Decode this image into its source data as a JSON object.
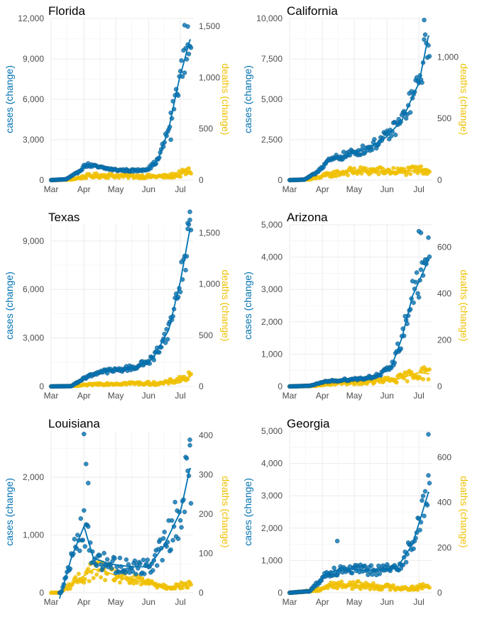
{
  "colors": {
    "cases": "#0072B2",
    "deaths": "#F0C000"
  },
  "chart_data": [
    {
      "type": "scatter",
      "title": "Florida",
      "ylabel": "cases (change)",
      "y2label": "deaths (change)",
      "xticks": [
        "Mar",
        "Apr",
        "May",
        "Jun",
        "Jul"
      ],
      "xlim": [
        "2020-03-01",
        "2020-07-13"
      ],
      "ylim": [
        0,
        12000
      ],
      "yticks": [
        0,
        3000,
        6000,
        9000,
        12000
      ],
      "yticklabels": [
        "0",
        "3,000",
        "6,000",
        "9,000",
        "12,000"
      ],
      "y2lim": [
        0,
        1576
      ],
      "y2ticks": [
        0,
        500,
        1000,
        1500
      ],
      "y2ticklabels": [
        "0",
        "500",
        "1,000",
        "1,500"
      ],
      "cases_trend": [
        [
          "2020-03-01",
          0
        ],
        [
          "2020-03-15",
          60
        ],
        [
          "2020-03-25",
          500
        ],
        [
          "2020-04-03",
          1150
        ],
        [
          "2020-04-15",
          950
        ],
        [
          "2020-05-01",
          750
        ],
        [
          "2020-05-20",
          700
        ],
        [
          "2020-06-01",
          850
        ],
        [
          "2020-06-10",
          1500
        ],
        [
          "2020-06-20",
          3800
        ],
        [
          "2020-06-30",
          7500
        ],
        [
          "2020-07-10",
          10400
        ]
      ],
      "cases_noise": 0.12,
      "cases_outliers": [
        [
          "2020-07-05",
          11500
        ],
        [
          "2020-07-08",
          11400
        ],
        [
          "2020-06-22",
          3000
        ]
      ],
      "deaths_trend": [
        [
          "2020-03-01",
          0
        ],
        [
          "2020-03-20",
          5
        ],
        [
          "2020-04-05",
          40
        ],
        [
          "2020-04-20",
          45
        ],
        [
          "2020-05-10",
          40
        ],
        [
          "2020-06-01",
          35
        ],
        [
          "2020-06-20",
          35
        ],
        [
          "2020-07-10",
          85
        ]
      ],
      "deaths_noise": 0.5
    },
    {
      "type": "scatter",
      "title": "California",
      "ylabel": "cases (change)",
      "y2label": "deaths (change)",
      "xticks": [
        "Mar",
        "Apr",
        "May",
        "Jun",
        "Jul"
      ],
      "xlim": [
        "2020-03-01",
        "2020-07-13"
      ],
      "ylim": [
        0,
        10000
      ],
      "yticks": [
        0,
        2500,
        5000,
        7500,
        10000
      ],
      "yticklabels": [
        "0",
        "2,500",
        "5,000",
        "7,500",
        "10,000"
      ],
      "y2lim": [
        0,
        1313
      ],
      "y2ticks": [
        0,
        500,
        1000
      ],
      "y2ticklabels": [
        "0",
        "500",
        "1,000"
      ],
      "cases_trend": [
        [
          "2020-03-01",
          0
        ],
        [
          "2020-03-15",
          30
        ],
        [
          "2020-03-25",
          400
        ],
        [
          "2020-04-05",
          1100
        ],
        [
          "2020-04-15",
          1400
        ],
        [
          "2020-05-01",
          1700
        ],
        [
          "2020-05-15",
          2000
        ],
        [
          "2020-06-01",
          2700
        ],
        [
          "2020-06-15",
          3700
        ],
        [
          "2020-07-01",
          6000
        ],
        [
          "2020-07-10",
          8900
        ]
      ],
      "cases_noise": 0.15,
      "cases_outliers": [
        [
          "2020-07-06",
          9900
        ]
      ],
      "deaths_trend": [
        [
          "2020-03-01",
          0
        ],
        [
          "2020-03-20",
          5
        ],
        [
          "2020-04-05",
          40
        ],
        [
          "2020-04-25",
          70
        ],
        [
          "2020-05-15",
          75
        ],
        [
          "2020-06-15",
          70
        ],
        [
          "2020-07-10",
          85
        ]
      ],
      "deaths_noise": 0.45
    },
    {
      "type": "scatter",
      "title": "Texas",
      "ylabel": "cases (change)",
      "y2label": "deaths (change)",
      "xticks": [
        "Mar",
        "Apr",
        "May",
        "Jun",
        "Jul"
      ],
      "xlim": [
        "2020-03-01",
        "2020-07-13"
      ],
      "ylim": [
        0,
        10000
      ],
      "yticks": [
        0,
        3000,
        6000,
        9000
      ],
      "yticklabels": [
        "0",
        "3,000",
        "6,000",
        "9,000"
      ],
      "y2lim": [
        0,
        1578
      ],
      "y2ticks": [
        0,
        500,
        1000,
        1500
      ],
      "y2ticklabels": [
        "0",
        "500",
        "1,000",
        "1,500"
      ],
      "cases_trend": [
        [
          "2020-03-01",
          0
        ],
        [
          "2020-03-20",
          20
        ],
        [
          "2020-04-01",
          500
        ],
        [
          "2020-04-15",
          900
        ],
        [
          "2020-05-01",
          1000
        ],
        [
          "2020-05-20",
          1200
        ],
        [
          "2020-06-05",
          1700
        ],
        [
          "2020-06-20",
          3500
        ],
        [
          "2020-07-01",
          6500
        ],
        [
          "2020-07-10",
          9700
        ]
      ],
      "cases_noise": 0.14,
      "cases_outliers": [
        [
          "2020-07-10",
          10800
        ],
        [
          "2020-07-08",
          10100
        ]
      ],
      "deaths_trend": [
        [
          "2020-03-01",
          0
        ],
        [
          "2020-03-25",
          5
        ],
        [
          "2020-04-15",
          25
        ],
        [
          "2020-05-15",
          30
        ],
        [
          "2020-06-15",
          30
        ],
        [
          "2020-07-10",
          95
        ]
      ],
      "deaths_noise": 0.5
    },
    {
      "type": "scatter",
      "title": "Arizona",
      "ylabel": "cases (change)",
      "y2label": "deaths (change)",
      "xticks": [
        "Mar",
        "Apr",
        "May",
        "Jun",
        "Jul"
      ],
      "xlim": [
        "2020-03-01",
        "2020-07-13"
      ],
      "ylim": [
        0,
        5000
      ],
      "yticks": [
        0,
        1000,
        2000,
        3000,
        4000,
        5000
      ],
      "yticklabels": [
        "0",
        "1,000",
        "2,000",
        "3,000",
        "4,000",
        "5,000"
      ],
      "y2lim": [
        0,
        696
      ],
      "y2ticks": [
        0,
        200,
        400,
        600
      ],
      "y2ticklabels": [
        "0",
        "200",
        "400",
        "600"
      ],
      "cases_trend": [
        [
          "2020-03-01",
          0
        ],
        [
          "2020-03-20",
          20
        ],
        [
          "2020-04-05",
          150
        ],
        [
          "2020-04-20",
          200
        ],
        [
          "2020-05-10",
          250
        ],
        [
          "2020-05-25",
          350
        ],
        [
          "2020-06-05",
          600
        ],
        [
          "2020-06-15",
          1500
        ],
        [
          "2020-06-25",
          2800
        ],
        [
          "2020-07-10",
          3900
        ]
      ],
      "cases_noise": 0.18,
      "cases_outliers": [
        [
          "2020-07-01",
          4800
        ],
        [
          "2020-07-03",
          4750
        ]
      ],
      "deaths_trend": [
        [
          "2020-03-01",
          0
        ],
        [
          "2020-03-25",
          2
        ],
        [
          "2020-04-15",
          15
        ],
        [
          "2020-05-15",
          20
        ],
        [
          "2020-06-10",
          30
        ],
        [
          "2020-07-01",
          60
        ],
        [
          "2020-07-10",
          55
        ]
      ],
      "deaths_noise": 0.5
    },
    {
      "type": "scatter",
      "title": "Louisiana",
      "ylabel": "cases (change)",
      "y2label": "deaths (change)",
      "xticks": [
        "Mar",
        "Apr",
        "May",
        "Jun",
        "Jul"
      ],
      "xlim": [
        "2020-03-01",
        "2020-07-13"
      ],
      "ylim": [
        0,
        2800
      ],
      "yticks": [
        0,
        1000,
        2000
      ],
      "yticklabels": [
        "0",
        "1,000",
        "2,000"
      ],
      "y2lim": [
        0,
        411
      ],
      "y2ticks": [
        0,
        100,
        200,
        300,
        400
      ],
      "y2ticklabels": [
        "0",
        "100",
        "200",
        "300",
        "400"
      ],
      "cases_trend": [
        [
          "2020-03-09",
          -100
        ],
        [
          "2020-03-20",
          600
        ],
        [
          "2020-04-01",
          1150
        ],
        [
          "2020-04-10",
          600
        ],
        [
          "2020-04-25",
          500
        ],
        [
          "2020-05-15",
          450
        ],
        [
          "2020-06-01",
          450
        ],
        [
          "2020-06-15",
          800
        ],
        [
          "2020-07-01",
          1400
        ],
        [
          "2020-07-10",
          2150
        ]
      ],
      "cases_noise": 0.3,
      "cases_outliers": [
        [
          "2020-04-01",
          2750
        ],
        [
          "2020-04-03",
          2230
        ],
        [
          "2020-04-05",
          1900
        ],
        [
          "2020-07-10",
          2650
        ]
      ],
      "deaths_trend": [
        [
          "2020-03-09",
          0
        ],
        [
          "2020-03-25",
          30
        ],
        [
          "2020-04-10",
          60
        ],
        [
          "2020-04-20",
          55
        ],
        [
          "2020-05-10",
          35
        ],
        [
          "2020-06-01",
          25
        ],
        [
          "2020-06-20",
          15
        ],
        [
          "2020-07-10",
          20
        ]
      ],
      "deaths_noise": 0.45
    },
    {
      "type": "scatter",
      "title": "Georgia",
      "ylabel": "cases (change)",
      "y2label": "deaths (change)",
      "xticks": [
        "Mar",
        "Apr",
        "May",
        "Jun",
        "Jul"
      ],
      "xlim": [
        "2020-03-01",
        "2020-07-13"
      ],
      "ylim": [
        0,
        5000
      ],
      "yticks": [
        0,
        1000,
        2000,
        3000,
        4000,
        5000
      ],
      "yticklabels": [
        "0",
        "1,000",
        "2,000",
        "3,000",
        "4,000",
        "5,000"
      ],
      "y2lim": [
        0,
        716
      ],
      "y2ticks": [
        0,
        200,
        400,
        600
      ],
      "y2ticklabels": [
        "0",
        "200",
        "400",
        "600"
      ],
      "cases_trend": [
        [
          "2020-03-01",
          0
        ],
        [
          "2020-03-20",
          50
        ],
        [
          "2020-04-05",
          600
        ],
        [
          "2020-04-20",
          750
        ],
        [
          "2020-05-10",
          700
        ],
        [
          "2020-05-25",
          700
        ],
        [
          "2020-06-10",
          750
        ],
        [
          "2020-06-25",
          1500
        ],
        [
          "2020-07-10",
          3100
        ]
      ],
      "cases_noise": 0.22,
      "cases_outliers": [
        [
          "2020-07-10",
          4900
        ],
        [
          "2020-04-15",
          1600
        ]
      ],
      "deaths_trend": [
        [
          "2020-03-01",
          0
        ],
        [
          "2020-03-25",
          10
        ],
        [
          "2020-04-10",
          35
        ],
        [
          "2020-05-01",
          35
        ],
        [
          "2020-06-01",
          25
        ],
        [
          "2020-06-25",
          20
        ],
        [
          "2020-07-10",
          30
        ]
      ],
      "deaths_noise": 0.5
    }
  ]
}
